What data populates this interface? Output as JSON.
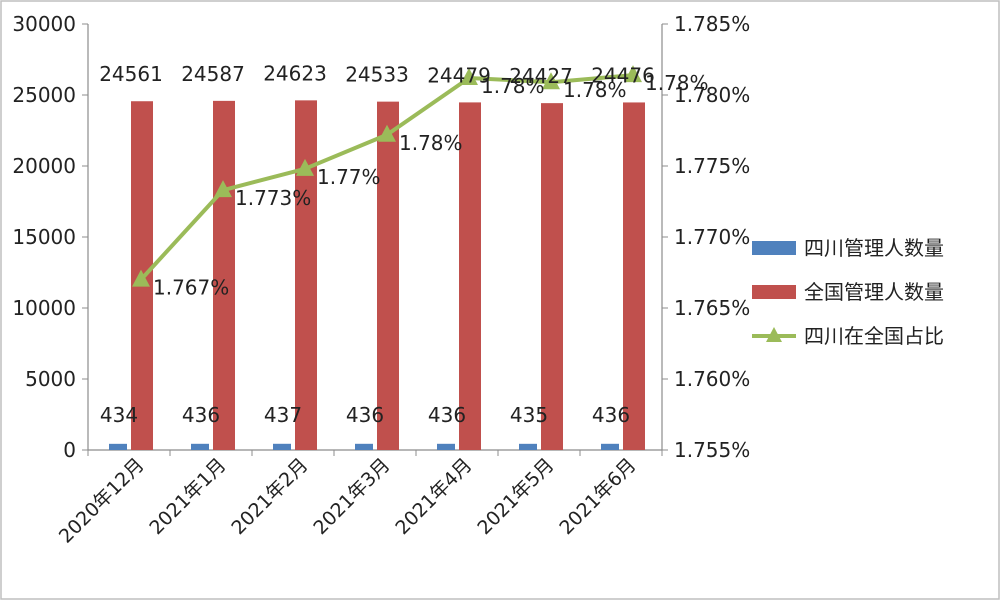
{
  "chart_data": {
    "type": "bar",
    "categories": [
      "2020年12月",
      "2021年1月",
      "2021年2月",
      "2021年3月",
      "2021年4月",
      "2021年5月",
      "2021年6月"
    ],
    "series": [
      {
        "name": "四川管理人数量",
        "type": "bar",
        "axis": "left",
        "color": "#4f81bd",
        "values": [
          434,
          436,
          437,
          436,
          436,
          435,
          436
        ],
        "labels": [
          "434",
          "436",
          "437",
          "436",
          "436",
          "435",
          "436"
        ]
      },
      {
        "name": "全国管理人数量",
        "type": "bar",
        "axis": "left",
        "color": "#c0504d",
        "values": [
          24561,
          24587,
          24623,
          24533,
          24479,
          24427,
          24476
        ],
        "labels": [
          "24561",
          "24587",
          "24623",
          "24533",
          "24479",
          "24427",
          "24476"
        ]
      },
      {
        "name": "四川在全国占比",
        "type": "line",
        "axis": "right",
        "color": "#9bbb59",
        "values": [
          1.767,
          1.7733,
          1.7748,
          1.7772,
          1.7812,
          1.7809,
          1.7814
        ],
        "labels": [
          "1.767%",
          "1.773%",
          "1.77%",
          "1.78%",
          "1.78%",
          "1.78%",
          "1.78%"
        ]
      }
    ],
    "y_left": {
      "min": 0,
      "max": 30000,
      "ticks": [
        "0",
        "5000",
        "10000",
        "15000",
        "20000",
        "25000",
        "30000"
      ]
    },
    "y_right": {
      "min": 1.755,
      "max": 1.785,
      "ticks": [
        "1.755%",
        "1.760%",
        "1.765%",
        "1.770%",
        "1.775%",
        "1.780%",
        "1.785%"
      ]
    },
    "legend_position": "right",
    "grid": false
  }
}
